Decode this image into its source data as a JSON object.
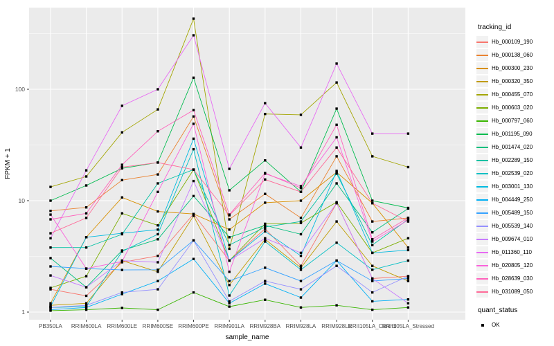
{
  "figure": {
    "bg": "#ffffff",
    "panel_bg": "#ebebeb",
    "grid_color": "#ffffff",
    "tick_label_color": "#4d4d4d",
    "tick_mark_color": "#333333",
    "axis_title_color": "#000000",
    "point_color": "#000000"
  },
  "chart_data": {
    "type": "line",
    "xlabel": "sample_name",
    "ylabel": "FPKM + 1",
    "y_scale": "log10",
    "y_ticks": [
      1,
      10,
      100
    ],
    "ylim": [
      1,
      550
    ],
    "grid": "on",
    "legend_position": "right",
    "point_shape": "filled-square",
    "categories": [
      "PB350LA",
      "RRIM600LA",
      "RRIM600LE",
      "RRIM600SE",
      "RRIM600PE",
      "RRIM901LA",
      "RRIM928BA",
      "RRIM928LA",
      "RRIM928LE",
      "RRII105LA_Control",
      "RRII105LA_Stressed"
    ],
    "series": [
      {
        "name": "Hb_000109_190",
        "color": "#F8766D",
        "values": [
          1.6,
          1.4,
          2.8,
          3.2,
          7.6,
          2.9,
          5.6,
          2.6,
          9.5,
          2.0,
          2.1
        ]
      },
      {
        "name": "Hb_000138_060",
        "color": "#EA8331",
        "values": [
          8.1,
          8.7,
          15.3,
          17.2,
          57,
          6.8,
          11.5,
          7.0,
          25,
          6.5,
          7.0
        ]
      },
      {
        "name": "Hb_000300_230",
        "color": "#D89000",
        "values": [
          1.2,
          4.7,
          10.7,
          8.0,
          7.6,
          5.5,
          9.6,
          10.0,
          18,
          9.5,
          3.8
        ]
      },
      {
        "name": "Hb_000320_350",
        "color": "#C09B00",
        "values": [
          1.15,
          1.2,
          2.9,
          2.3,
          7.3,
          1.75,
          4.5,
          2.5,
          6.5,
          2.6,
          1.9
        ]
      },
      {
        "name": "Hb_000455_070",
        "color": "#A3A500",
        "values": [
          13.3,
          16.5,
          41,
          66,
          430,
          3.7,
          60,
          59,
          115,
          25,
          20
        ]
      },
      {
        "name": "Hb_000603_020",
        "color": "#7CAE00",
        "values": [
          1.65,
          2.1,
          7.7,
          6.0,
          19,
          2.9,
          6.2,
          6.3,
          9.7,
          3.4,
          4.6
        ]
      },
      {
        "name": "Hb_000797_060",
        "color": "#39B600",
        "values": [
          1.03,
          1.05,
          1.09,
          1.05,
          1.5,
          1.12,
          1.29,
          1.1,
          1.15,
          1.05,
          1.1
        ]
      },
      {
        "name": "Hb_001195_090",
        "color": "#00BB4E",
        "values": [
          10,
          13.7,
          19.5,
          22,
          127,
          12.4,
          23,
          12,
          67,
          10,
          8.6
        ]
      },
      {
        "name": "Hb_001474_020",
        "color": "#00BF7D",
        "values": [
          3.05,
          1.67,
          3.57,
          4.5,
          11,
          4.7,
          6.0,
          5.0,
          14.3,
          5.2,
          8.5
        ]
      },
      {
        "name": "Hb_002289_150",
        "color": "#00C1A3",
        "values": [
          3.8,
          3.8,
          5.0,
          14.3,
          19,
          4.0,
          5.8,
          6.5,
          17.5,
          4.0,
          6.8
        ]
      },
      {
        "name": "Hb_002539_020",
        "color": "#00BFC4",
        "values": [
          1.1,
          1.12,
          3.5,
          5.0,
          29,
          1.41,
          4.3,
          2.4,
          4.2,
          2.4,
          2.9
        ]
      },
      {
        "name": "Hb_003001_130",
        "color": "#00BAE0",
        "values": [
          1.12,
          4.7,
          5.1,
          5.5,
          36,
          2.9,
          5.3,
          3.2,
          18.5,
          3.4,
          3.6
        ]
      },
      {
        "name": "Hb_004449_250",
        "color": "#00B0F6",
        "values": [
          1.05,
          1.1,
          1.45,
          1.9,
          3.0,
          1.2,
          1.8,
          1.35,
          2.9,
          1.25,
          1.3
        ]
      },
      {
        "name": "Hb_005489_150",
        "color": "#35A2FF",
        "values": [
          2.57,
          2.46,
          2.39,
          2.4,
          4.4,
          1.9,
          2.5,
          1.9,
          2.9,
          1.9,
          2.0
        ]
      },
      {
        "name": "Hb_005539_140",
        "color": "#9590FF",
        "values": [
          1.1,
          1.15,
          1.5,
          1.6,
          4.4,
          1.25,
          1.9,
          1.6,
          2.6,
          1.5,
          2.1
        ]
      },
      {
        "name": "Hb_009674_010",
        "color": "#C77CFF",
        "values": [
          2.13,
          1.67,
          2.9,
          2.8,
          15,
          2.9,
          4.6,
          3.4,
          9.5,
          2.0,
          1.2
        ]
      },
      {
        "name": "Hb_011360_110",
        "color": "#E76BF3",
        "values": [
          4.6,
          18.7,
          71,
          100,
          305,
          19.3,
          75,
          30,
          170,
          40,
          40
        ]
      },
      {
        "name": "Hb_020805_120",
        "color": "#FA62DB",
        "values": [
          7.5,
          2.46,
          2.85,
          12,
          49,
          2.3,
          17.5,
          13.5,
          37,
          4.3,
          6.7
        ]
      },
      {
        "name": "Hb_028639_030",
        "color": "#FF62BC",
        "values": [
          6.8,
          7.7,
          21,
          42,
          65,
          7.5,
          17.7,
          13,
          48,
          4.5,
          7.0
        ]
      },
      {
        "name": "Hb_031089_050",
        "color": "#FF6A98",
        "values": [
          5.1,
          7.0,
          20,
          22,
          19,
          7.4,
          15.5,
          12,
          30,
          9.5,
          6.5
        ]
      }
    ]
  },
  "legend": {
    "tracking_title": "tracking_id",
    "quant_title": "quant_status",
    "quant_items": [
      {
        "label": "OK"
      }
    ]
  }
}
